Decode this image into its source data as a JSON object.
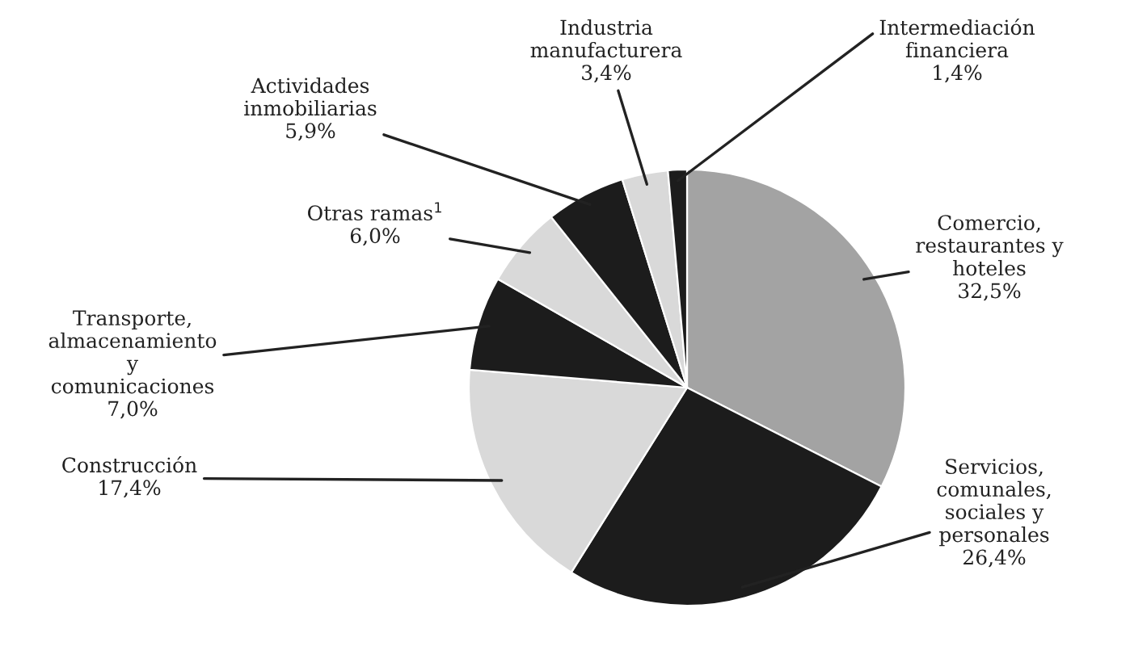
{
  "chart_data": {
    "type": "pie",
    "categories": [
      "Comercio,\nrestaurantes y\nhoteles",
      "Servicios,\ncomunales,\nsociales y\npersonales",
      "Construcción",
      "Transporte,\nalmacenamiento\ny\ncomunicaciones",
      "Otras ramas$^{1}$",
      "Actividades\ninmobiliarias",
      "Industria\nmanufacturera",
      "Intermediación\nfinanciera"
    ],
    "values": [
      32.5,
      26.4,
      17.4,
      7.0,
      6.0,
      5.9,
      3.4,
      1.4
    ],
    "colors": [
      "#a3a3a3",
      "#1c1c1c",
      "#d9d9d9",
      "#1c1c1c",
      "#d9d9d9",
      "#1c1c1c",
      "#d9d9d9",
      "#1c1c1c"
    ],
    "value_labels": [
      "32,5%",
      "26,4%",
      "17,4%",
      "7,0%",
      "6,0%",
      "5,9%",
      "3,4%",
      "1,4%"
    ]
  }
}
